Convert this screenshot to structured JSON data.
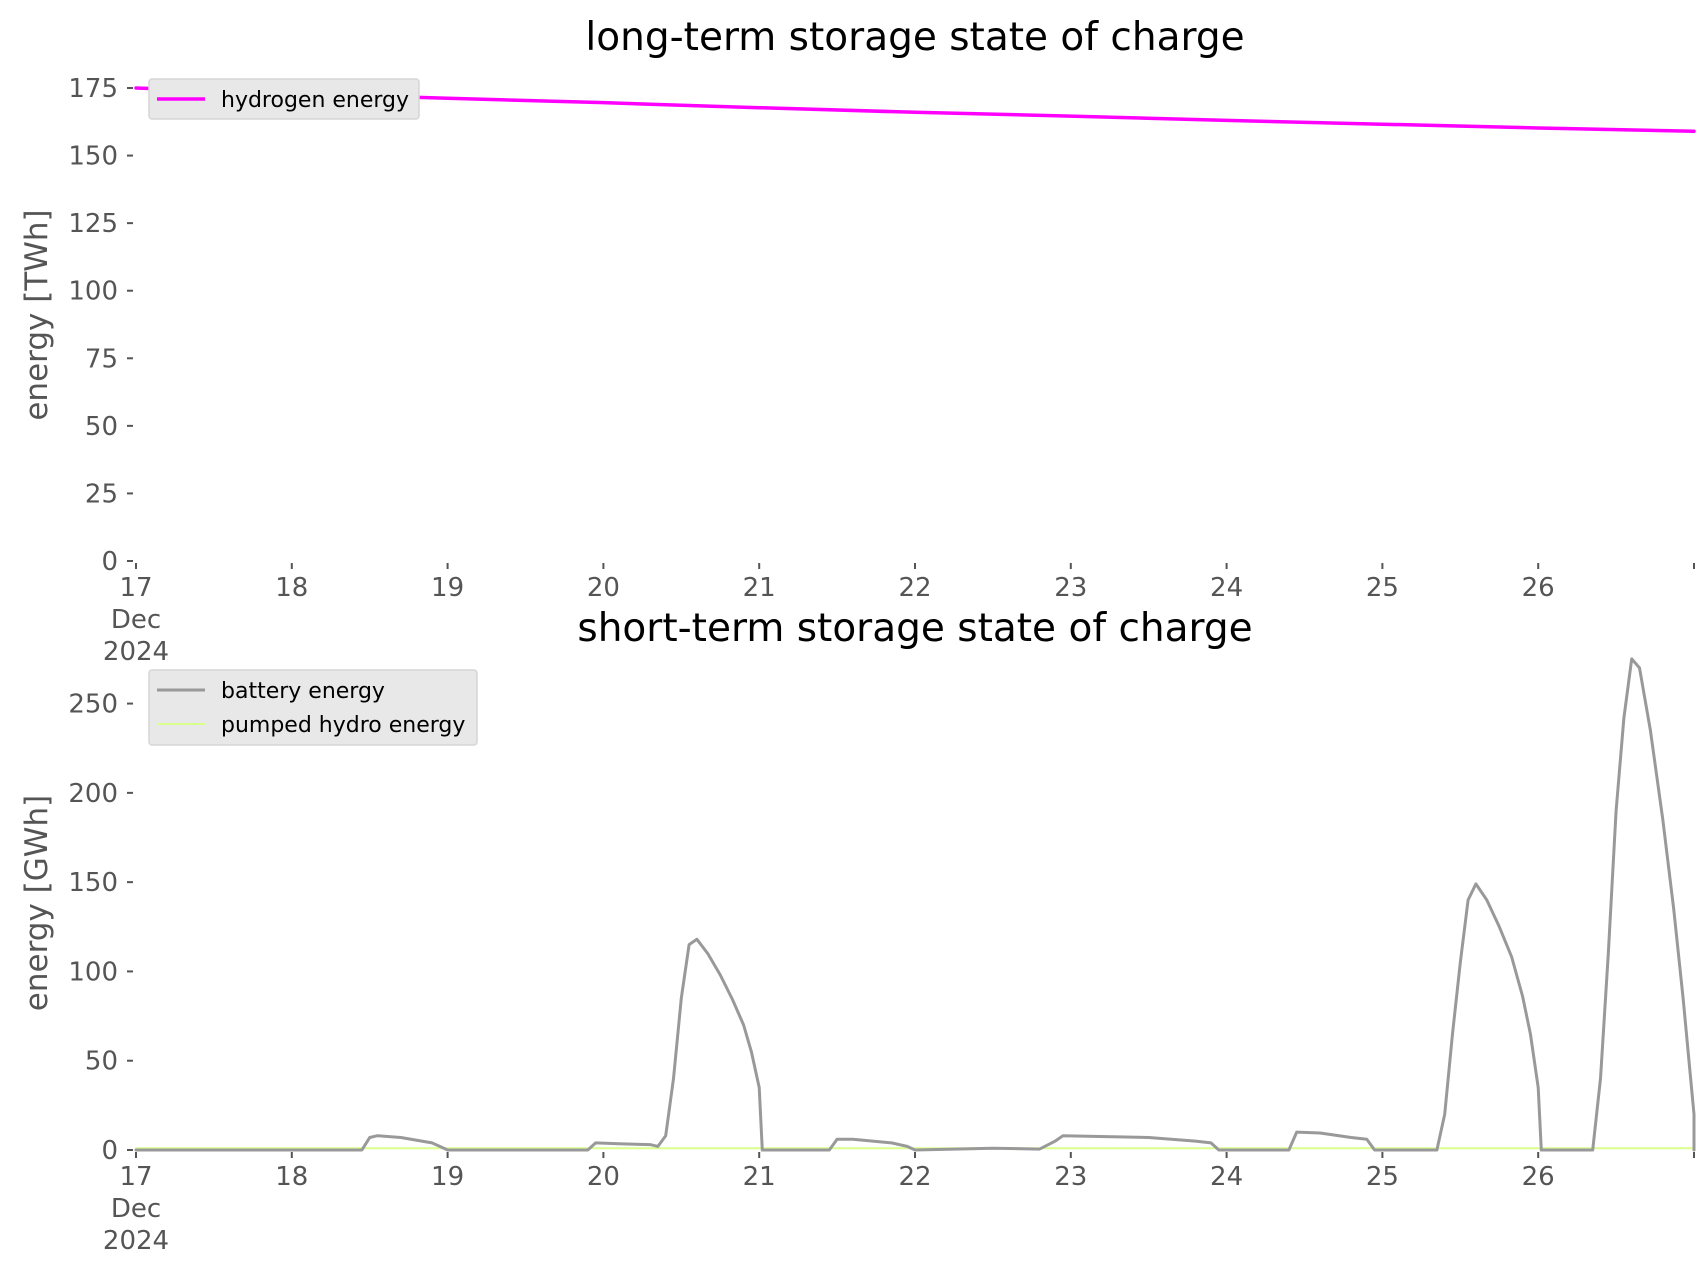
{
  "chart_data": [
    {
      "type": "line",
      "title": "long-term storage state of charge",
      "xlabel": "",
      "ylabel": "energy [TWh]",
      "x_range": [
        "2024-12-17",
        "2024-12-27"
      ],
      "x_ticks": [
        {
          "x": 17,
          "label": "17"
        },
        {
          "x": 18,
          "label": "18"
        },
        {
          "x": 19,
          "label": "19"
        },
        {
          "x": 20,
          "label": "20"
        },
        {
          "x": 21,
          "label": "21"
        },
        {
          "x": 22,
          "label": "22"
        },
        {
          "x": 23,
          "label": "23"
        },
        {
          "x": 24,
          "label": "24"
        },
        {
          "x": 25,
          "label": "25"
        },
        {
          "x": 26,
          "label": "26"
        },
        {
          "x": 27,
          "label": ""
        }
      ],
      "x_sublabels": [
        "Dec",
        "2024"
      ],
      "ylim": [
        0,
        175
      ],
      "y_ticks": [
        0,
        25,
        50,
        75,
        100,
        125,
        150,
        175
      ],
      "grid": false,
      "legend": "top-left",
      "series": [
        {
          "name": "hydrogen energy",
          "color": "#ff00ff",
          "width": 3.5,
          "points": [
            [
              17.0,
              175.0
            ],
            [
              18.0,
              173.0
            ],
            [
              19.0,
              171.2
            ],
            [
              20.0,
              169.6
            ],
            [
              20.5,
              168.6
            ],
            [
              21.0,
              167.7
            ],
            [
              22.0,
              166.0
            ],
            [
              23.0,
              164.6
            ],
            [
              24.0,
              163.0
            ],
            [
              25.0,
              161.6
            ],
            [
              26.0,
              160.2
            ],
            [
              27.0,
              159.0
            ]
          ]
        }
      ]
    },
    {
      "type": "line",
      "title": "short-term storage state of charge",
      "xlabel": "",
      "ylabel": "energy [GWh]",
      "x_range": [
        "2024-12-17",
        "2024-12-27"
      ],
      "x_ticks": [
        {
          "x": 17,
          "label": "17"
        },
        {
          "x": 18,
          "label": "18"
        },
        {
          "x": 19,
          "label": "19"
        },
        {
          "x": 20,
          "label": "20"
        },
        {
          "x": 21,
          "label": "21"
        },
        {
          "x": 22,
          "label": "22"
        },
        {
          "x": 23,
          "label": "23"
        },
        {
          "x": 24,
          "label": "24"
        },
        {
          "x": 25,
          "label": "25"
        },
        {
          "x": 26,
          "label": "26"
        },
        {
          "x": 27,
          "label": ""
        }
      ],
      "x_sublabels": [
        "Dec",
        "2024"
      ],
      "ylim": [
        0,
        280
      ],
      "y_ticks": [
        0,
        50,
        100,
        150,
        200,
        250
      ],
      "grid": false,
      "legend": "top-left",
      "series": [
        {
          "name": "battery energy",
          "color": "#999999",
          "width": 3,
          "points": [
            [
              17.0,
              0
            ],
            [
              18.45,
              0
            ],
            [
              18.5,
              7
            ],
            [
              18.55,
              8
            ],
            [
              18.7,
              7
            ],
            [
              18.9,
              4
            ],
            [
              18.95,
              2
            ],
            [
              19.0,
              0
            ],
            [
              19.9,
              0
            ],
            [
              19.95,
              4
            ],
            [
              20.1,
              3.5
            ],
            [
              20.3,
              3
            ],
            [
              20.35,
              2
            ],
            [
              20.4,
              8
            ],
            [
              20.45,
              40
            ],
            [
              20.5,
              85
            ],
            [
              20.55,
              115
            ],
            [
              20.6,
              118
            ],
            [
              20.67,
              110
            ],
            [
              20.75,
              98
            ],
            [
              20.83,
              84
            ],
            [
              20.9,
              70
            ],
            [
              20.95,
              55
            ],
            [
              21.0,
              35
            ],
            [
              21.02,
              0
            ],
            [
              21.45,
              0
            ],
            [
              21.5,
              6
            ],
            [
              21.6,
              6
            ],
            [
              21.85,
              4
            ],
            [
              21.95,
              2
            ],
            [
              22.0,
              0
            ],
            [
              22.5,
              1
            ],
            [
              22.8,
              0.5
            ],
            [
              22.9,
              5
            ],
            [
              22.95,
              8
            ],
            [
              23.5,
              7
            ],
            [
              23.8,
              5
            ],
            [
              23.9,
              4
            ],
            [
              23.95,
              0
            ],
            [
              24.4,
              0
            ],
            [
              24.45,
              10
            ],
            [
              24.6,
              9.5
            ],
            [
              24.8,
              7
            ],
            [
              24.9,
              6
            ],
            [
              24.95,
              0
            ],
            [
              25.35,
              0
            ],
            [
              25.4,
              20
            ],
            [
              25.45,
              65
            ],
            [
              25.5,
              105
            ],
            [
              25.55,
              140
            ],
            [
              25.6,
              149
            ],
            [
              25.67,
              140
            ],
            [
              25.75,
              125
            ],
            [
              25.83,
              108
            ],
            [
              25.9,
              86
            ],
            [
              25.95,
              65
            ],
            [
              26.0,
              35
            ],
            [
              26.02,
              0
            ],
            [
              26.35,
              0
            ],
            [
              26.4,
              40
            ],
            [
              26.45,
              110
            ],
            [
              26.5,
              190
            ],
            [
              26.55,
              242
            ],
            [
              26.6,
              275
            ],
            [
              26.65,
              270
            ],
            [
              26.72,
              235
            ],
            [
              26.8,
              185
            ],
            [
              26.87,
              135
            ],
            [
              26.93,
              85
            ],
            [
              27.0,
              20
            ],
            [
              27.0,
              0
            ]
          ]
        },
        {
          "name": "pumped hydro energy",
          "color": "#d9ff8c",
          "width": 2,
          "points": [
            [
              17.0,
              1
            ],
            [
              27.0,
              1
            ]
          ]
        }
      ]
    }
  ]
}
